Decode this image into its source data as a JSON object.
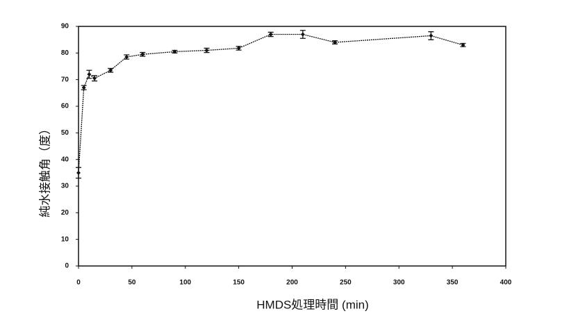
{
  "chart_data": {
    "type": "line",
    "x_label": "HMDS処理時間 (min)",
    "y_label": "純水接触角（度）",
    "x": [
      0,
      5,
      10,
      15,
      30,
      45,
      60,
      90,
      120,
      150,
      180,
      210,
      240,
      330,
      360
    ],
    "values": [
      35,
      67,
      72,
      70.5,
      73.5,
      78.5,
      79.5,
      80.5,
      81,
      81.8,
      87,
      87,
      84,
      86.5,
      83
    ],
    "errors": [
      2,
      0.8,
      1.5,
      1,
      0.7,
      0.8,
      0.7,
      0.5,
      0.8,
      0.7,
      0.8,
      1.5,
      0.6,
      1.5,
      0.6
    ],
    "color": "#111111",
    "xlim": [
      0,
      400
    ],
    "xticks": [
      0,
      50,
      100,
      150,
      200,
      250,
      300,
      350,
      400
    ],
    "ylim": [
      0,
      90
    ],
    "yticks": [
      0,
      10,
      20,
      30,
      40,
      50,
      60,
      70,
      80,
      90
    ],
    "grid": false
  }
}
